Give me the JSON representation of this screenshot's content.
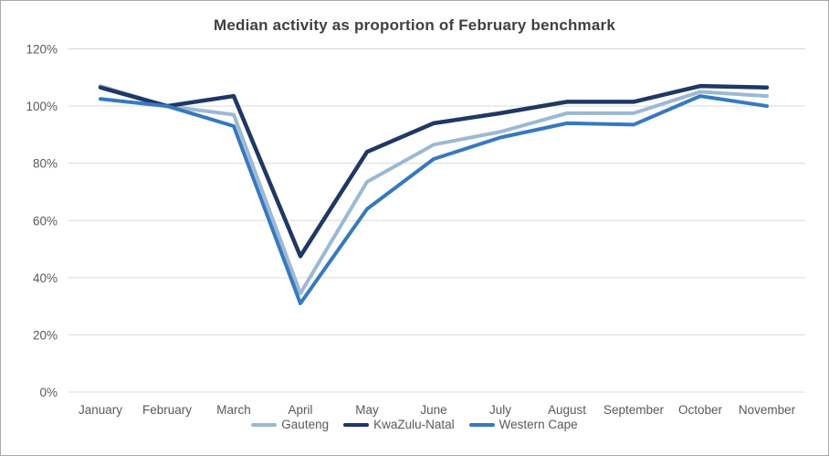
{
  "window": {
    "background": "#ffffff",
    "border_color": "#a9a9a9"
  },
  "chart_data": {
    "type": "line",
    "title": "Median activity as proportion of February benchmark",
    "categories": [
      "January",
      "February",
      "March",
      "April",
      "May",
      "June",
      "July",
      "August",
      "September",
      "October",
      "November"
    ],
    "series": [
      {
        "name": "Gauteng",
        "color": "#9cb9d3",
        "stroke_width": 4,
        "values": [
          107,
          100,
          97,
          34.5,
          73.5,
          86.5,
          91,
          97.5,
          97.5,
          105,
          103.5
        ]
      },
      {
        "name": "KwaZulu-Natal",
        "color": "#1f3864",
        "stroke_width": 4.5,
        "values": [
          106.5,
          100,
          103.5,
          47.5,
          84,
          94,
          97.5,
          101.5,
          101.5,
          107,
          106.5
        ]
      },
      {
        "name": "Western Cape",
        "color": "#3679be",
        "stroke_width": 4,
        "values": [
          102.5,
          100,
          93,
          31,
          64,
          81.5,
          89,
          94,
          93.5,
          103.5,
          100
        ]
      }
    ],
    "y_axis": {
      "min": 0,
      "max": 120,
      "step": 20,
      "tick_labels": [
        "0%",
        "20%",
        "40%",
        "60%",
        "80%",
        "100%",
        "120%"
      ]
    },
    "x_axis": {
      "label_color": "#595959",
      "font_size": 13.5
    },
    "grid": true,
    "grid_color": "#d9d9d9",
    "axis_text_color": "#595959",
    "title_color": "#404040",
    "legend_position": "bottom"
  }
}
